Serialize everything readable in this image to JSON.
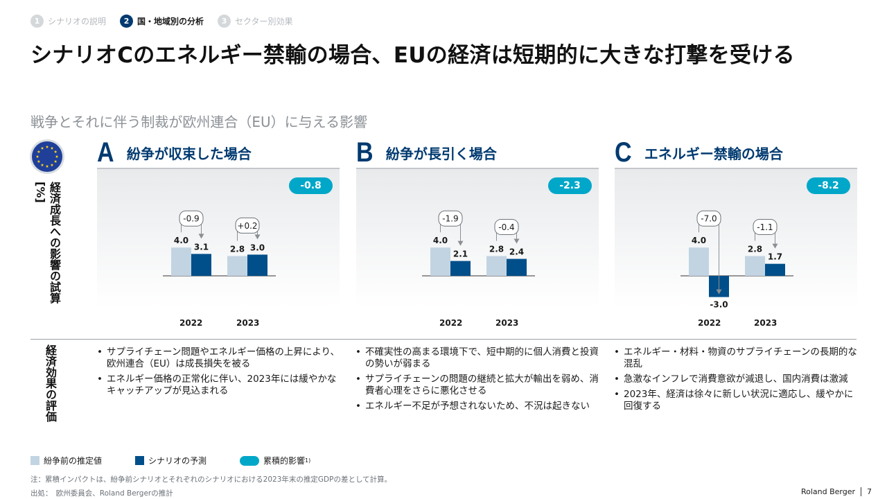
{
  "breadcrumb": [
    {
      "num": "1",
      "label": "シナリオの説明",
      "active": false
    },
    {
      "num": "2",
      "label": "国・地域別の分析",
      "active": true
    },
    {
      "num": "3",
      "label": "セクター別効果",
      "active": false
    }
  ],
  "title": "シナリオCのエネルギー禁輸の場合、EUの経済は短期的に大きな打撃を受ける",
  "subtitle": "戦争とそれに伴う制裁が欧州連合（EU）に与える影響",
  "y_label_top": "経済成長への影響の試算[%]",
  "y_label_bottom": "経済効果の評価",
  "colors": {
    "pre_war": "#c2d4e2",
    "scenario": "#004f8a",
    "cumulative": "#00a7c9",
    "navy": "#003a70"
  },
  "chart_data": [
    {
      "type": "bar",
      "letter": "A",
      "title": "紛争が収束した場合",
      "categories": [
        "2022",
        "2023"
      ],
      "series": [
        {
          "name": "紛争前の推定値",
          "values": [
            4.0,
            2.8
          ]
        },
        {
          "name": "シナリオの予測",
          "values": [
            3.1,
            3.0
          ]
        }
      ],
      "value_labels": {
        "pre": [
          "4.0",
          "2.8"
        ],
        "scn": [
          "3.1",
          "3.0"
        ]
      },
      "diffs": [
        "-0.9",
        "+0.2"
      ],
      "cumulative": "-0.8"
    },
    {
      "type": "bar",
      "letter": "B",
      "title": "紛争が長引く場合",
      "categories": [
        "2022",
        "2023"
      ],
      "series": [
        {
          "name": "紛争前の推定値",
          "values": [
            4.0,
            2.8
          ]
        },
        {
          "name": "シナリオの予測",
          "values": [
            2.1,
            2.4
          ]
        }
      ],
      "value_labels": {
        "pre": [
          "4.0",
          "2.8"
        ],
        "scn": [
          "2.1",
          "2.4"
        ]
      },
      "diffs": [
        "-1.9",
        "-0.4"
      ],
      "cumulative": "-2.3"
    },
    {
      "type": "bar",
      "letter": "C",
      "title": "エネルギー禁輸の場合",
      "categories": [
        "2022",
        "2023"
      ],
      "series": [
        {
          "name": "紛争前の推定値",
          "values": [
            4.0,
            2.8
          ]
        },
        {
          "name": "シナリオの予測",
          "values": [
            -3.0,
            1.7
          ]
        }
      ],
      "value_labels": {
        "pre": [
          "4.0",
          "2.8"
        ],
        "scn": [
          "-3.0",
          "1.7"
        ]
      },
      "diffs": [
        "-7.0",
        "-1.1"
      ],
      "cumulative": "-8.2"
    }
  ],
  "bullets": [
    [
      "サプライチェーン問題やエネルギー価格の上昇により、欧州連合（EU）は成長損失を被る",
      "エネルギー価格の正常化に伴い、2023年には緩やかなキャッチアップが見込まれる"
    ],
    [
      "不確実性の高まる環境下で、短中期的に個人消費と投資の勢いが弱まる",
      "サプライチェーンの問題の継続と拡大が輸出を弱め、消費者心理をさらに悪化させる",
      "エネルギー不足が予想されないため、不況は起きない"
    ],
    [
      "エネルギー・材料・物資のサプライチェーンの長期的な混乱",
      "急激なインフレで消費意欲が減退し、国内消費は激減",
      "2023年、経済は徐々に新しい状況に適応し、緩やかに回復する"
    ]
  ],
  "legend": {
    "pre": "紛争前の推定値",
    "scn": "シナリオの予測",
    "cum": "累積的影響",
    "cum_sup": "1)"
  },
  "note": "注：累積インパクトは、紛争前シナリオとそれぞれのシナリオにおける2023年末の推定GDPの差として計算。",
  "source": "出処：　欧州委員会、Roland Bergerの推計",
  "footer": {
    "brand": "Roland Berger",
    "page": "7"
  }
}
